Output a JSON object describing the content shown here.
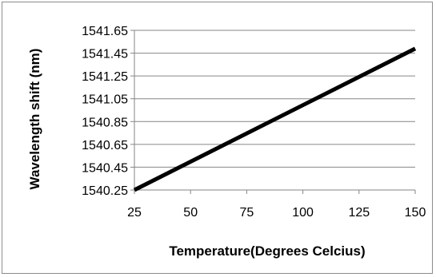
{
  "chart_data": {
    "type": "line",
    "title": "",
    "xlabel": "Temperature(Degrees Celcius)",
    "ylabel": "Wavelength shift (nm)",
    "xlim": [
      25,
      150
    ],
    "ylim": [
      1540.25,
      1541.65
    ],
    "x_ticks": [
      25,
      50,
      75,
      100,
      125,
      150
    ],
    "y_ticks": [
      1540.25,
      1540.45,
      1540.65,
      1540.85,
      1541.05,
      1541.25,
      1541.45,
      1541.65
    ],
    "x_tick_labels": [
      "25",
      "50",
      "75",
      "100",
      "125",
      "150"
    ],
    "y_tick_labels": [
      "1540.25",
      "1540.45",
      "1540.65",
      "1540.85",
      "1541.05",
      "1541.25",
      "1541.45",
      "1541.65"
    ],
    "grid": "horizontal",
    "legend": "none",
    "line_color": "#000000",
    "series": [
      {
        "x": [
          25,
          150
        ],
        "y": [
          1540.25,
          1541.49
        ]
      }
    ]
  }
}
